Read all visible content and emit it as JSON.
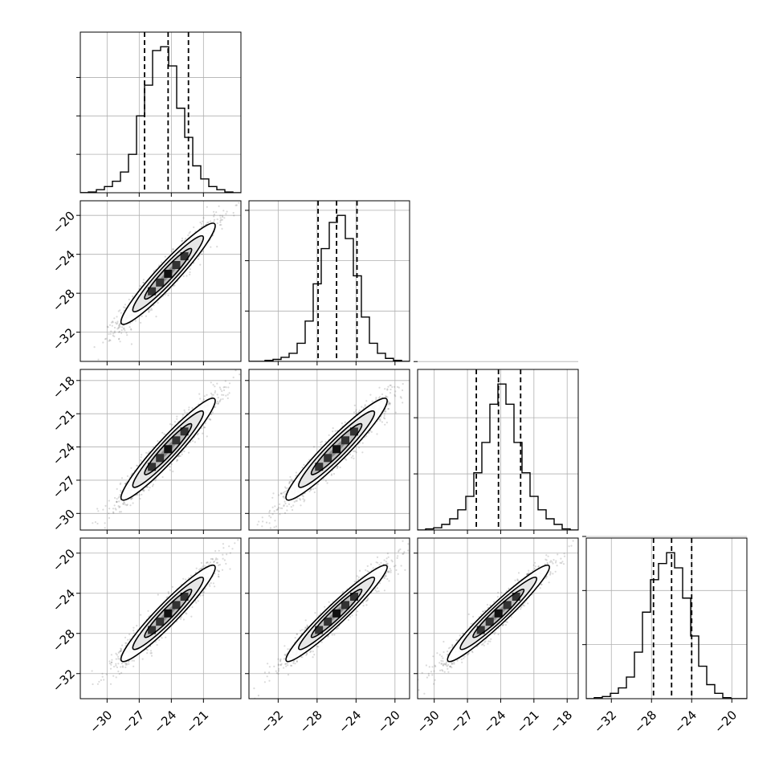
{
  "chart_data": {
    "type": "corner",
    "title": "",
    "grid": true,
    "parameters": [
      {
        "name": "",
        "range": [
          -32.5,
          -17.5
        ],
        "ticks": [
          -30,
          -27,
          -24,
          -21
        ],
        "tick_labels": [
          "−30",
          "−27",
          "−24",
          "−21"
        ],
        "quantiles": [
          -26.5,
          -24.3,
          -22.4
        ],
        "histogram": {
          "bin_edges": [
            -32.5,
            -31.75,
            -31.0,
            -30.25,
            -29.5,
            -28.75,
            -28.0,
            -27.25,
            -26.5,
            -25.75,
            -25.0,
            -24.25,
            -23.5,
            -22.75,
            -22.0,
            -21.25,
            -20.5,
            -19.75,
            -19.0,
            -18.25,
            -17.5
          ],
          "counts": [
            0.2,
            1,
            4,
            8,
            15,
            27,
            50,
            100,
            140,
            185,
            190,
            165,
            110,
            72,
            35,
            18,
            8,
            4,
            1,
            0
          ]
        },
        "histogram_yticks": [
          50,
          100,
          150
        ]
      },
      {
        "name": "",
        "range": [
          -35.0,
          -18.5
        ],
        "ticks": [
          -32,
          -28,
          -24,
          -20
        ],
        "tick_labels": [
          "−32",
          "−28",
          "−24",
          "−20"
        ],
        "quantiles": [
          -27.9,
          -26.0,
          -23.9
        ],
        "histogram": {
          "bin_edges": [
            -35.0,
            -34.175,
            -33.35,
            -32.525,
            -31.7,
            -30.875,
            -30.05,
            -29.225,
            -28.4,
            -27.575,
            -26.75,
            -25.925,
            -25.1,
            -24.275,
            -23.45,
            -22.625,
            -21.8,
            -20.975,
            -20.15,
            -19.325,
            -18.5
          ],
          "counts": [
            0,
            0,
            1,
            2,
            4,
            8,
            18,
            40,
            77,
            112,
            138,
            145,
            122,
            85,
            44,
            18,
            8,
            3,
            1,
            0
          ]
        },
        "histogram_yticks": [
          50,
          100,
          150
        ]
      },
      {
        "name": "",
        "range": [
          -31.5,
          -17.0
        ],
        "ticks": [
          -30,
          -27,
          -24,
          -21,
          -18
        ],
        "tick_labels": [
          "−30",
          "−27",
          "−24",
          "−21",
          "−18"
        ],
        "quantiles": [
          -26.2,
          -24.2,
          -22.2
        ],
        "histogram": {
          "bin_edges": [
            -31.5,
            -30.775,
            -30.05,
            -29.325,
            -28.6,
            -27.875,
            -27.15,
            -26.425,
            -25.7,
            -24.975,
            -24.25,
            -23.525,
            -22.8,
            -22.075,
            -21.35,
            -20.625,
            -19.9,
            -19.175,
            -18.45,
            -17.725,
            -17.0
          ],
          "counts": [
            0,
            1,
            2,
            5,
            10,
            18,
            30,
            51,
            78,
            112,
            130,
            112,
            78,
            51,
            30,
            18,
            10,
            5,
            1,
            0
          ]
        },
        "histogram_yticks": [
          50,
          100,
          150
        ]
      },
      {
        "name": "",
        "range": [
          -34.5,
          -18.5
        ],
        "ticks": [
          -32,
          -28,
          -24,
          -20
        ],
        "tick_labels": [
          "−32",
          "−28",
          "−24",
          "−20"
        ],
        "quantiles": [
          -27.8,
          -26.0,
          -24.0
        ],
        "histogram": {
          "bin_edges": [
            -34.5,
            -33.7,
            -32.9,
            -32.1,
            -31.3,
            -30.5,
            -29.7,
            -28.9,
            -28.1,
            -27.3,
            -26.5,
            -25.7,
            -24.9,
            -24.1,
            -23.3,
            -22.5,
            -21.7,
            -20.9,
            -20.1,
            -19.3,
            -18.5
          ],
          "counts": [
            0,
            1,
            2,
            5,
            10,
            20,
            43,
            80,
            110,
            125,
            135,
            121,
            93,
            58,
            30,
            13,
            5,
            1,
            0,
            0
          ]
        },
        "histogram_yticks": [
          50,
          100,
          150
        ]
      }
    ],
    "pairs": [
      {
        "x": 0,
        "y": 1,
        "mean_x": -24.3,
        "mean_y": -26.0,
        "sd_x": 2.2,
        "sd_y": 2.6,
        "correlation": 0.95
      },
      {
        "x": 0,
        "y": 2,
        "mean_x": -24.3,
        "mean_y": -24.2,
        "sd_x": 2.2,
        "sd_y": 2.3,
        "correlation": 0.95
      },
      {
        "x": 1,
        "y": 2,
        "mean_x": -26.0,
        "mean_y": -24.2,
        "sd_x": 2.6,
        "sd_y": 2.3,
        "correlation": 0.95
      },
      {
        "x": 0,
        "y": 3,
        "mean_x": -24.3,
        "mean_y": -26.0,
        "sd_x": 2.2,
        "sd_y": 2.4,
        "correlation": 0.95
      },
      {
        "x": 1,
        "y": 3,
        "mean_x": -26.0,
        "mean_y": -26.0,
        "sd_x": 2.6,
        "sd_y": 2.4,
        "correlation": 0.96
      },
      {
        "x": 2,
        "y": 3,
        "mean_x": -24.2,
        "mean_y": -26.0,
        "sd_x": 2.3,
        "sd_y": 2.4,
        "correlation": 0.96
      }
    ],
    "contour_levels_sigma": [
      0.5,
      1.0,
      1.5,
      2.0
    ],
    "colors": {
      "axes": "#000000",
      "grid": "#b0b0b0",
      "points": "#555555",
      "line": "#000000"
    }
  }
}
